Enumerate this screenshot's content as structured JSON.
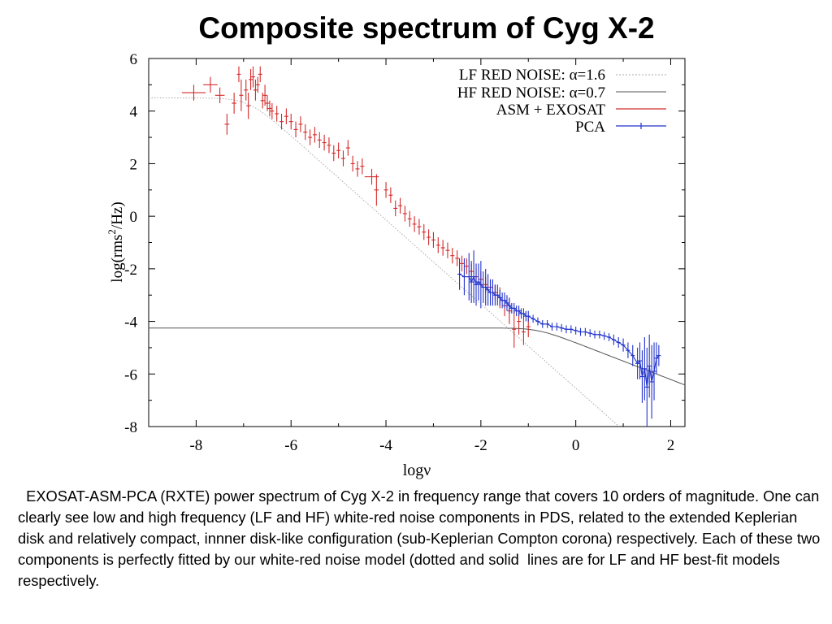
{
  "slide": {
    "title": "Composite spectrum of Cyg X-2",
    "caption": "  EXOSAT-ASM-PCA (RXTE) power spectrum of Cyg X-2 in frequency range that covers 10 orders of magnitude. One can clearly see low and high frequency (LF and HF) white-red noise components in PDS, related to the extended Keplerian disk and relatively compact, innner disk-like configuration (sub-Keplerian Compton corona) respectively. Each of these two components is perfectly fitted by our white-red noise model (dotted and solid  lines are for LF and HF best-fit models respectively."
  },
  "chart_data": {
    "type": "scatter",
    "xlabel": "logν",
    "ylabel_base": "log(rms",
    "ylabel_sup": "2",
    "ylabel_tail": "/Hz)",
    "xlim": [
      -9,
      2.3
    ],
    "ylim": [
      -8,
      6
    ],
    "xticks": [
      "-8",
      "-6",
      "-4",
      "-2",
      "0",
      "2"
    ],
    "yticks": [
      "6",
      "4",
      "2",
      "0",
      "-2",
      "-4",
      "-6",
      "-8"
    ],
    "legend_position": "top-right",
    "colors": {
      "asm_exosat": "#d42a2a",
      "pca": "#2233cc",
      "lf_model": "#aaaaaa",
      "hf_model": "#555555"
    },
    "models": [
      {
        "name": "LF RED NOISE: α=1.6",
        "style": "dotted",
        "plateau": 4.5,
        "knee_x": -6.9,
        "slope": 1.6
      },
      {
        "name": "HF RED NOISE: α=0.7",
        "style": "solid",
        "plateau": -4.25,
        "knee_x": -0.8,
        "slope": 0.7
      }
    ],
    "series": [
      {
        "name": "ASM + EXOSAT",
        "style": "red-errorbars",
        "points": [
          [
            -8.05,
            4.7,
            0.25,
            0.3
          ],
          [
            -7.7,
            5.0,
            0.15,
            0.3
          ],
          [
            -7.5,
            4.6,
            0.1,
            0.3
          ],
          [
            -7.35,
            3.5,
            0.05,
            0.4
          ],
          [
            -7.2,
            4.3,
            0.05,
            0.4
          ],
          [
            -7.1,
            5.4,
            0.03,
            0.3
          ],
          [
            -7.05,
            4.6,
            0.03,
            0.6
          ],
          [
            -6.95,
            4.8,
            0.03,
            0.4
          ],
          [
            -6.9,
            4.2,
            0.03,
            0.5
          ],
          [
            -6.85,
            5.2,
            0.02,
            0.4
          ],
          [
            -6.8,
            5.3,
            0.02,
            0.4
          ],
          [
            -6.75,
            4.8,
            0.02,
            0.4
          ],
          [
            -6.7,
            5.0,
            0.02,
            0.3
          ],
          [
            -6.65,
            5.4,
            0.02,
            0.3
          ],
          [
            -6.6,
            4.4,
            0.02,
            0.3
          ],
          [
            -6.55,
            4.6,
            0.02,
            0.4
          ],
          [
            -6.5,
            4.3,
            0.02,
            0.3
          ],
          [
            -6.45,
            4.1,
            0.02,
            0.3
          ],
          [
            -6.4,
            4.0,
            0.02,
            0.3
          ],
          [
            -6.3,
            3.9,
            0.02,
            0.3
          ],
          [
            -6.2,
            3.6,
            0.02,
            0.3
          ],
          [
            -6.1,
            3.8,
            0.02,
            0.3
          ],
          [
            -6.0,
            3.6,
            0.02,
            0.3
          ],
          [
            -5.9,
            3.3,
            0.02,
            0.3
          ],
          [
            -5.8,
            3.5,
            0.02,
            0.3
          ],
          [
            -5.7,
            3.2,
            0.02,
            0.3
          ],
          [
            -5.6,
            3.0,
            0.02,
            0.3
          ],
          [
            -5.5,
            3.1,
            0.02,
            0.3
          ],
          [
            -5.4,
            2.9,
            0.02,
            0.3
          ],
          [
            -5.3,
            2.8,
            0.02,
            0.3
          ],
          [
            -5.2,
            2.7,
            0.02,
            0.3
          ],
          [
            -5.1,
            2.4,
            0.02,
            0.3
          ],
          [
            -5.0,
            2.5,
            0.02,
            0.3
          ],
          [
            -4.9,
            2.2,
            0.02,
            0.3
          ],
          [
            -4.8,
            2.6,
            0.02,
            0.3
          ],
          [
            -4.7,
            2.0,
            0.02,
            0.3
          ],
          [
            -4.6,
            1.8,
            0.02,
            0.3
          ],
          [
            -4.5,
            1.9,
            0.02,
            0.3
          ],
          [
            -4.3,
            1.5,
            0.15,
            0.3
          ],
          [
            -4.2,
            1.0,
            0.05,
            0.6
          ],
          [
            -4.0,
            1.0,
            0.02,
            0.3
          ],
          [
            -3.9,
            0.8,
            0.02,
            0.3
          ],
          [
            -3.8,
            0.3,
            0.02,
            0.3
          ],
          [
            -3.7,
            0.4,
            0.02,
            0.3
          ],
          [
            -3.6,
            0.1,
            0.02,
            0.3
          ],
          [
            -3.5,
            -0.1,
            0.02,
            0.3
          ],
          [
            -3.4,
            -0.3,
            0.02,
            0.3
          ],
          [
            -3.3,
            -0.4,
            0.02,
            0.3
          ],
          [
            -3.2,
            -0.6,
            0.02,
            0.3
          ],
          [
            -3.1,
            -0.8,
            0.02,
            0.3
          ],
          [
            -3.0,
            -0.9,
            0.02,
            0.3
          ],
          [
            -2.9,
            -1.1,
            0.02,
            0.3
          ],
          [
            -2.8,
            -1.2,
            0.02,
            0.3
          ],
          [
            -2.7,
            -1.3,
            0.02,
            0.3
          ],
          [
            -2.6,
            -1.5,
            0.02,
            0.3
          ],
          [
            -2.5,
            -1.6,
            0.02,
            0.3
          ],
          [
            -2.4,
            -1.8,
            0.02,
            0.3
          ],
          [
            -2.3,
            -1.9,
            0.02,
            0.3
          ],
          [
            -2.2,
            -2.1,
            0.02,
            0.3
          ],
          [
            -2.1,
            -2.3,
            0.02,
            0.3
          ],
          [
            -2.0,
            -2.4,
            0.02,
            0.3
          ],
          [
            -1.9,
            -2.6,
            0.02,
            0.3
          ],
          [
            -1.8,
            -2.7,
            0.02,
            0.3
          ],
          [
            -1.7,
            -2.9,
            0.02,
            0.3
          ],
          [
            -1.6,
            -3.1,
            0.02,
            0.4
          ],
          [
            -1.5,
            -3.4,
            0.02,
            0.4
          ],
          [
            -1.4,
            -3.6,
            0.02,
            0.5
          ],
          [
            -1.3,
            -4.3,
            0.02,
            0.7
          ],
          [
            -1.2,
            -4.0,
            0.02,
            0.5
          ],
          [
            -1.1,
            -4.4,
            0.02,
            0.5
          ],
          [
            -1.0,
            -4.2,
            0.02,
            0.4
          ]
        ]
      },
      {
        "name": "PCA",
        "style": "blue-errorbars",
        "points": [
          [
            -2.45,
            -2.2,
            0.01,
            0.6
          ],
          [
            -2.35,
            -2.3,
            0.01,
            0.7
          ],
          [
            -2.25,
            -2.3,
            0.01,
            0.9
          ],
          [
            -2.2,
            -2.5,
            0.01,
            0.8
          ],
          [
            -2.15,
            -2.3,
            0.01,
            1.0
          ],
          [
            -2.1,
            -2.6,
            0.01,
            0.8
          ],
          [
            -2.05,
            -2.5,
            0.01,
            0.7
          ],
          [
            -2.0,
            -2.6,
            0.01,
            0.9
          ],
          [
            -1.95,
            -2.7,
            0.01,
            0.6
          ],
          [
            -1.9,
            -2.7,
            0.01,
            0.7
          ],
          [
            -1.85,
            -2.8,
            0.01,
            0.6
          ],
          [
            -1.8,
            -2.9,
            0.01,
            0.5
          ],
          [
            -1.75,
            -2.9,
            0.01,
            0.5
          ],
          [
            -1.7,
            -3.0,
            0.01,
            0.4
          ],
          [
            -1.65,
            -3.0,
            0.01,
            0.4
          ],
          [
            -1.6,
            -3.1,
            0.01,
            0.3
          ],
          [
            -1.55,
            -3.2,
            0.01,
            0.3
          ],
          [
            -1.5,
            -3.2,
            0.01,
            0.3
          ],
          [
            -1.45,
            -3.3,
            0.01,
            0.3
          ],
          [
            -1.4,
            -3.4,
            0.01,
            0.3
          ],
          [
            -1.35,
            -3.5,
            0.01,
            0.2
          ],
          [
            -1.3,
            -3.5,
            0.01,
            0.2
          ],
          [
            -1.25,
            -3.6,
            0.01,
            0.2
          ],
          [
            -1.2,
            -3.6,
            0.01,
            0.2
          ],
          [
            -1.15,
            -3.7,
            0.01,
            0.2
          ],
          [
            -1.1,
            -3.7,
            0.01,
            0.2
          ],
          [
            -1.05,
            -3.8,
            0.01,
            0.2
          ],
          [
            -1.0,
            -3.8,
            0.01,
            0.2
          ],
          [
            -0.9,
            -3.9,
            0.01,
            0.15
          ],
          [
            -0.8,
            -4.0,
            0.01,
            0.15
          ],
          [
            -0.7,
            -4.1,
            0.01,
            0.15
          ],
          [
            -0.6,
            -4.1,
            0.01,
            0.15
          ],
          [
            -0.5,
            -4.2,
            0.01,
            0.15
          ],
          [
            -0.4,
            -4.2,
            0.01,
            0.15
          ],
          [
            -0.3,
            -4.25,
            0.01,
            0.15
          ],
          [
            -0.2,
            -4.3,
            0.01,
            0.15
          ],
          [
            -0.1,
            -4.3,
            0.01,
            0.15
          ],
          [
            0.0,
            -4.35,
            0.01,
            0.15
          ],
          [
            0.1,
            -4.4,
            0.01,
            0.15
          ],
          [
            0.2,
            -4.4,
            0.01,
            0.15
          ],
          [
            0.3,
            -4.45,
            0.01,
            0.15
          ],
          [
            0.4,
            -4.5,
            0.01,
            0.15
          ],
          [
            0.5,
            -4.5,
            0.01,
            0.15
          ],
          [
            0.6,
            -4.55,
            0.01,
            0.15
          ],
          [
            0.7,
            -4.6,
            0.01,
            0.15
          ],
          [
            0.8,
            -4.7,
            0.01,
            0.2
          ],
          [
            0.9,
            -4.8,
            0.01,
            0.2
          ],
          [
            1.0,
            -4.9,
            0.01,
            0.25
          ],
          [
            1.1,
            -5.1,
            0.01,
            0.3
          ],
          [
            1.2,
            -5.3,
            0.01,
            0.4
          ],
          [
            1.3,
            -5.6,
            0.01,
            0.6
          ],
          [
            1.35,
            -5.5,
            0.01,
            0.7
          ],
          [
            1.4,
            -6.1,
            0.01,
            1.0
          ],
          [
            1.45,
            -5.8,
            0.01,
            1.2
          ],
          [
            1.5,
            -6.5,
            0.01,
            1.5
          ],
          [
            1.55,
            -5.7,
            0.01,
            1.2
          ],
          [
            1.6,
            -6.3,
            0.01,
            1.4
          ],
          [
            1.65,
            -5.9,
            0.01,
            1.1
          ],
          [
            1.7,
            -5.4,
            0.01,
            0.6
          ],
          [
            1.75,
            -5.3,
            0.01,
            0.4
          ]
        ]
      }
    ]
  }
}
